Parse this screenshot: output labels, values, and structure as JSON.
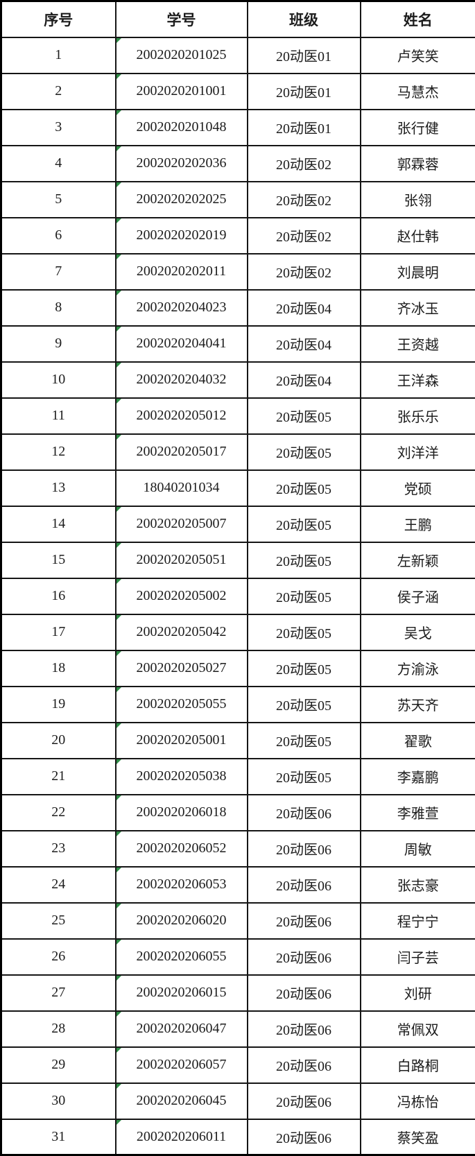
{
  "table": {
    "columns": [
      {
        "key": "no",
        "label": "序号"
      },
      {
        "key": "student_id",
        "label": "学号"
      },
      {
        "key": "class",
        "label": "班级"
      },
      {
        "key": "name",
        "label": "姓名"
      }
    ],
    "rows": [
      {
        "no": "1",
        "student_id": "2002020201025",
        "class": "20动医01",
        "name": "卢笑笑",
        "flag": true
      },
      {
        "no": "2",
        "student_id": "2002020201001",
        "class": "20动医01",
        "name": "马慧杰",
        "flag": true
      },
      {
        "no": "3",
        "student_id": "2002020201048",
        "class": "20动医01",
        "name": "张行健",
        "flag": true
      },
      {
        "no": "4",
        "student_id": "2002020202036",
        "class": "20动医02",
        "name": "郭霖蓉",
        "flag": true
      },
      {
        "no": "5",
        "student_id": "2002020202025",
        "class": "20动医02",
        "name": "张翎",
        "flag": true
      },
      {
        "no": "6",
        "student_id": "2002020202019",
        "class": "20动医02",
        "name": "赵仕韩",
        "flag": true
      },
      {
        "no": "7",
        "student_id": "2002020202011",
        "class": "20动医02",
        "name": "刘晨明",
        "flag": true
      },
      {
        "no": "8",
        "student_id": "2002020204023",
        "class": "20动医04",
        "name": "齐冰玉",
        "flag": true
      },
      {
        "no": "9",
        "student_id": "2002020204041",
        "class": "20动医04",
        "name": "王资越",
        "flag": true
      },
      {
        "no": "10",
        "student_id": "2002020204032",
        "class": "20动医04",
        "name": "王洋森",
        "flag": true
      },
      {
        "no": "11",
        "student_id": "2002020205012",
        "class": "20动医05",
        "name": "张乐乐",
        "flag": true
      },
      {
        "no": "12",
        "student_id": "2002020205017",
        "class": "20动医05",
        "name": "刘洋洋",
        "flag": true
      },
      {
        "no": "13",
        "student_id": "18040201034",
        "class": "20动医05",
        "name": "党硕",
        "flag": false
      },
      {
        "no": "14",
        "student_id": "2002020205007",
        "class": "20动医05",
        "name": "王鹏",
        "flag": true
      },
      {
        "no": "15",
        "student_id": "2002020205051",
        "class": "20动医05",
        "name": "左新颖",
        "flag": true
      },
      {
        "no": "16",
        "student_id": "2002020205002",
        "class": "20动医05",
        "name": "侯子涵",
        "flag": true
      },
      {
        "no": "17",
        "student_id": "2002020205042",
        "class": "20动医05",
        "name": "吴戈",
        "flag": true
      },
      {
        "no": "18",
        "student_id": "2002020205027",
        "class": "20动医05",
        "name": "方渝泳",
        "flag": true
      },
      {
        "no": "19",
        "student_id": "2002020205055",
        "class": "20动医05",
        "name": "苏天齐",
        "flag": true
      },
      {
        "no": "20",
        "student_id": "2002020205001",
        "class": "20动医05",
        "name": "翟歌",
        "flag": true
      },
      {
        "no": "21",
        "student_id": "2002020205038",
        "class": "20动医05",
        "name": "李嘉鹏",
        "flag": true
      },
      {
        "no": "22",
        "student_id": "2002020206018",
        "class": "20动医06",
        "name": "李雅萱",
        "flag": true
      },
      {
        "no": "23",
        "student_id": "2002020206052",
        "class": "20动医06",
        "name": "周敏",
        "flag": true
      },
      {
        "no": "24",
        "student_id": "2002020206053",
        "class": "20动医06",
        "name": "张志豪",
        "flag": true
      },
      {
        "no": "25",
        "student_id": "2002020206020",
        "class": "20动医06",
        "name": "程宁宁",
        "flag": true
      },
      {
        "no": "26",
        "student_id": "2002020206055",
        "class": "20动医06",
        "name": "闫子芸",
        "flag": true
      },
      {
        "no": "27",
        "student_id": "2002020206015",
        "class": "20动医06",
        "name": "刘研",
        "flag": true
      },
      {
        "no": "28",
        "student_id": "2002020206047",
        "class": "20动医06",
        "name": "常佩双",
        "flag": true
      },
      {
        "no": "29",
        "student_id": "2002020206057",
        "class": "20动医06",
        "name": "白路桐",
        "flag": true
      },
      {
        "no": "30",
        "student_id": "2002020206045",
        "class": "20动医06",
        "name": "冯栋怡",
        "flag": true
      },
      {
        "no": "31",
        "student_id": "2002020206011",
        "class": "20动医06",
        "name": "蔡笑盈",
        "flag": true
      }
    ]
  },
  "icons": {
    "flag_triangle": "number-stored-as-text-indicator"
  },
  "colors": {
    "background": "#ffffff",
    "border": "#000000",
    "grid": "#151515",
    "text": "#1c1c1c",
    "flag_green": "#2e8b46"
  }
}
